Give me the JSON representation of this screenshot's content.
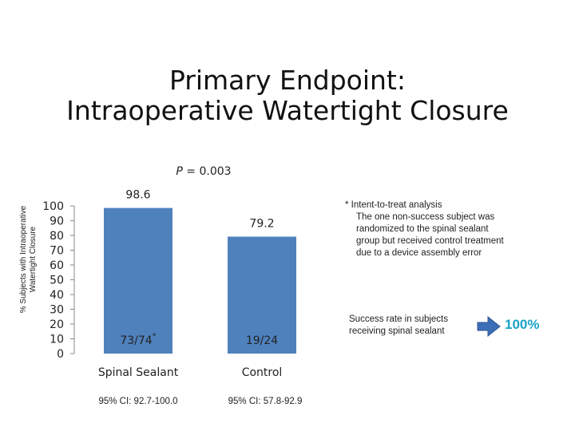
{
  "title": {
    "line1": "Primary Endpoint:",
    "line2": "Intraoperative Watertight Closure"
  },
  "p_value": {
    "label": "P",
    "text": " = 0.003"
  },
  "footnote": {
    "line1": "* Intent-to-treat analysis",
    "line2": "The one non-success subject was",
    "line3": "randomized to the spinal sealant",
    "line4": "group but received control treatment",
    "line5": "due to a device assembly error"
  },
  "success": {
    "line1": "Success rate in subjects",
    "line2": "receiving spinal sealant",
    "value": "100%"
  },
  "colors": {
    "bar": "#4f81bd",
    "accent": "#1aa3c7",
    "arrow": "#3d6fb8"
  },
  "icons": {
    "arrow": "right-arrow-icon"
  },
  "chart_data": {
    "type": "bar",
    "title": "Primary Endpoint: Intraoperative Watertight Closure",
    "ylabel_line1": "% Subjects with Intraoperative",
    "ylabel_line2": "Watertight Closure",
    "categories": [
      "Spinal Sealant",
      "Control"
    ],
    "values": [
      98.6,
      79.2
    ],
    "value_labels": [
      "98.6",
      "79.2"
    ],
    "counts": [
      "73/74",
      "19/24"
    ],
    "count_marks": [
      "*",
      ""
    ],
    "ci": [
      "95% CI: 92.7-100.0",
      "95% CI: 57.8-92.9"
    ],
    "ylim": [
      0,
      100
    ],
    "yticks": [
      0,
      10,
      20,
      30,
      40,
      50,
      60,
      70,
      80,
      90,
      100
    ],
    "grid": false,
    "legend": "none"
  }
}
